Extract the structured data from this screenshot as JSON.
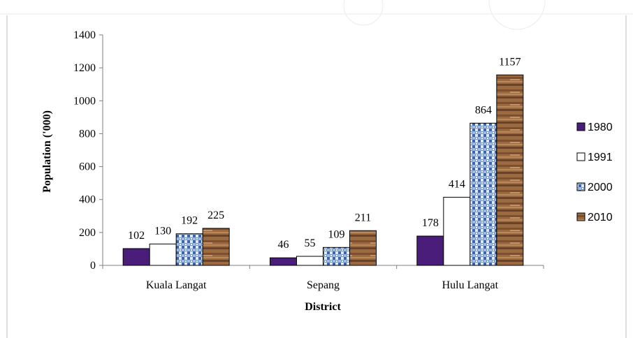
{
  "chart_data": {
    "type": "bar",
    "title": "",
    "xlabel": "District",
    "ylabel": "Population ('000)",
    "categories": [
      "Kuala Langat",
      "Sepang",
      "Hulu Langat"
    ],
    "ylim": [
      0,
      1400
    ],
    "yticks": [
      0,
      200,
      400,
      600,
      800,
      1000,
      1200,
      1400
    ],
    "grid": false,
    "legend_position": "right",
    "series": [
      {
        "name": "1980",
        "values": [
          102,
          46,
          178
        ],
        "color": "#4b1d7a",
        "pattern": "solid-purple"
      },
      {
        "name": "1991",
        "values": [
          130,
          55,
          414
        ],
        "color": "#ffffff",
        "pattern": "solid-white"
      },
      {
        "name": "2000",
        "values": [
          192,
          109,
          864
        ],
        "color": "#7aa0d6",
        "pattern": "blue-mosaic"
      },
      {
        "name": "2010",
        "values": [
          225,
          211,
          1157
        ],
        "color": "#9a6538",
        "pattern": "wood-grain"
      }
    ],
    "data_labels": [
      [
        "102",
        "46",
        "178"
      ],
      [
        "130",
        "55",
        "414"
      ],
      [
        "192",
        "109",
        "864"
      ],
      [
        "225",
        "211",
        "1157"
      ]
    ]
  }
}
